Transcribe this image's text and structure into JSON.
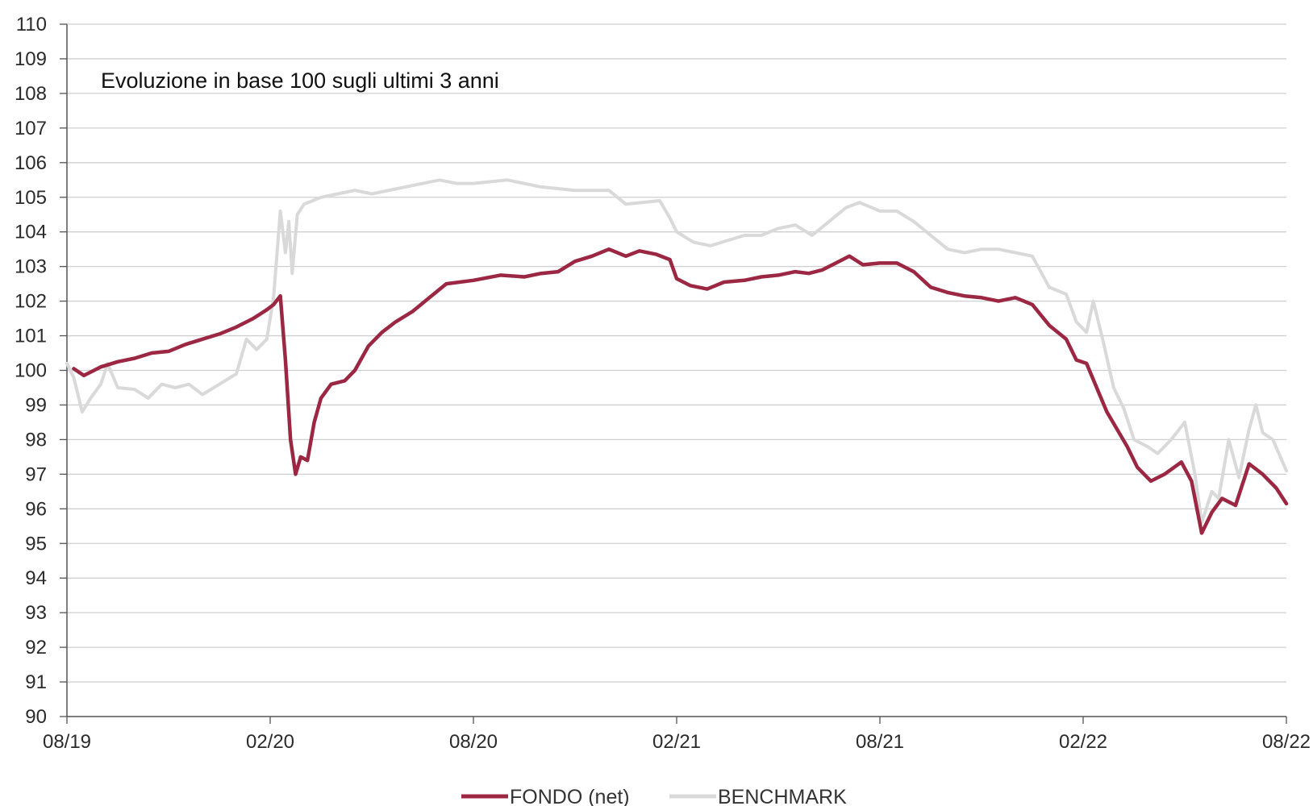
{
  "chart_data": {
    "type": "line",
    "title": "Evoluzione in base 100 sugli ultimi 3 anni",
    "xlabel": "",
    "ylabel": "",
    "ylim": [
      90,
      110
    ],
    "yticks": [
      90,
      91,
      92,
      93,
      94,
      95,
      96,
      97,
      98,
      99,
      100,
      101,
      102,
      103,
      104,
      105,
      106,
      107,
      108,
      109,
      110
    ],
    "xlim": [
      0,
      36
    ],
    "xticks": [
      {
        "x": 0,
        "label": "08/19"
      },
      {
        "x": 6,
        "label": "02/20"
      },
      {
        "x": 12,
        "label": "08/20"
      },
      {
        "x": 18,
        "label": "02/21"
      },
      {
        "x": 24,
        "label": "08/21"
      },
      {
        "x": 30,
        "label": "02/22"
      },
      {
        "x": 36,
        "label": "08/22"
      }
    ],
    "grid": true,
    "legend_position": "bottom-center",
    "series": [
      {
        "name": "FONDO (net)",
        "color": "#9b2743",
        "points": [
          [
            0.2,
            100.05
          ],
          [
            0.5,
            99.85
          ],
          [
            1.0,
            100.1
          ],
          [
            1.5,
            100.25
          ],
          [
            2.0,
            100.35
          ],
          [
            2.5,
            100.5
          ],
          [
            3.0,
            100.55
          ],
          [
            3.5,
            100.75
          ],
          [
            4.0,
            100.9
          ],
          [
            4.5,
            101.05
          ],
          [
            5.0,
            101.25
          ],
          [
            5.5,
            101.5
          ],
          [
            5.9,
            101.75
          ],
          [
            6.1,
            101.9
          ],
          [
            6.3,
            102.15
          ],
          [
            6.45,
            100.3
          ],
          [
            6.6,
            98.0
          ],
          [
            6.75,
            97.0
          ],
          [
            6.9,
            97.5
          ],
          [
            7.1,
            97.4
          ],
          [
            7.3,
            98.5
          ],
          [
            7.5,
            99.2
          ],
          [
            7.8,
            99.6
          ],
          [
            8.2,
            99.7
          ],
          [
            8.5,
            100.0
          ],
          [
            8.9,
            100.7
          ],
          [
            9.3,
            101.1
          ],
          [
            9.7,
            101.4
          ],
          [
            10.2,
            101.7
          ],
          [
            10.7,
            102.1
          ],
          [
            11.2,
            102.5
          ],
          [
            12.0,
            102.6
          ],
          [
            12.8,
            102.75
          ],
          [
            13.5,
            102.7
          ],
          [
            14.0,
            102.8
          ],
          [
            14.5,
            102.85
          ],
          [
            15.0,
            103.15
          ],
          [
            15.5,
            103.3
          ],
          [
            16.0,
            103.5
          ],
          [
            16.5,
            103.3
          ],
          [
            16.9,
            103.45
          ],
          [
            17.4,
            103.35
          ],
          [
            17.8,
            103.2
          ],
          [
            18.0,
            102.65
          ],
          [
            18.4,
            102.45
          ],
          [
            18.9,
            102.35
          ],
          [
            19.4,
            102.55
          ],
          [
            20.0,
            102.6
          ],
          [
            20.5,
            102.7
          ],
          [
            21.0,
            102.75
          ],
          [
            21.5,
            102.85
          ],
          [
            21.9,
            102.8
          ],
          [
            22.3,
            102.9
          ],
          [
            22.7,
            103.1
          ],
          [
            23.1,
            103.3
          ],
          [
            23.5,
            103.05
          ],
          [
            24.0,
            103.1
          ],
          [
            24.5,
            103.1
          ],
          [
            25.0,
            102.85
          ],
          [
            25.5,
            102.4
          ],
          [
            26.0,
            102.25
          ],
          [
            26.5,
            102.15
          ],
          [
            27.0,
            102.1
          ],
          [
            27.5,
            102.0
          ],
          [
            28.0,
            102.1
          ],
          [
            28.5,
            101.9
          ],
          [
            29.0,
            101.3
          ],
          [
            29.5,
            100.9
          ],
          [
            29.8,
            100.3
          ],
          [
            30.1,
            100.2
          ],
          [
            30.4,
            99.5
          ],
          [
            30.7,
            98.8
          ],
          [
            31.0,
            98.3
          ],
          [
            31.3,
            97.8
          ],
          [
            31.6,
            97.2
          ],
          [
            32.0,
            96.8
          ],
          [
            32.4,
            97.0
          ],
          [
            32.9,
            97.35
          ],
          [
            33.2,
            96.8
          ],
          [
            33.5,
            95.3
          ],
          [
            33.8,
            95.9
          ],
          [
            34.1,
            96.3
          ],
          [
            34.5,
            96.1
          ],
          [
            34.9,
            97.3
          ],
          [
            35.3,
            97.0
          ],
          [
            35.7,
            96.6
          ],
          [
            36.0,
            96.15
          ]
        ]
      },
      {
        "name": "BENCHMARK",
        "color": "#d9d9d9",
        "points": [
          [
            0.0,
            100.2
          ],
          [
            0.2,
            99.8
          ],
          [
            0.45,
            98.8
          ],
          [
            0.7,
            99.2
          ],
          [
            1.0,
            99.6
          ],
          [
            1.2,
            100.2
          ],
          [
            1.5,
            99.5
          ],
          [
            2.0,
            99.45
          ],
          [
            2.4,
            99.2
          ],
          [
            2.8,
            99.6
          ],
          [
            3.2,
            99.5
          ],
          [
            3.6,
            99.6
          ],
          [
            4.0,
            99.3
          ],
          [
            4.5,
            99.6
          ],
          [
            5.0,
            99.9
          ],
          [
            5.3,
            100.9
          ],
          [
            5.6,
            100.6
          ],
          [
            5.9,
            100.9
          ],
          [
            6.1,
            102.1
          ],
          [
            6.3,
            104.6
          ],
          [
            6.45,
            103.4
          ],
          [
            6.55,
            104.3
          ],
          [
            6.65,
            102.8
          ],
          [
            6.8,
            104.5
          ],
          [
            7.0,
            104.8
          ],
          [
            7.5,
            105.0
          ],
          [
            8.0,
            105.1
          ],
          [
            8.5,
            105.2
          ],
          [
            9.0,
            105.1
          ],
          [
            10.0,
            105.3
          ],
          [
            11.0,
            105.5
          ],
          [
            11.5,
            105.4
          ],
          [
            12.0,
            105.4
          ],
          [
            13.0,
            105.5
          ],
          [
            14.0,
            105.3
          ],
          [
            15.0,
            105.2
          ],
          [
            16.0,
            105.2
          ],
          [
            16.5,
            104.8
          ],
          [
            17.5,
            104.9
          ],
          [
            17.8,
            104.4
          ],
          [
            18.0,
            104.0
          ],
          [
            18.5,
            103.7
          ],
          [
            19.0,
            103.6
          ],
          [
            19.5,
            103.75
          ],
          [
            20.0,
            103.9
          ],
          [
            20.5,
            103.9
          ],
          [
            21.0,
            104.1
          ],
          [
            21.5,
            104.2
          ],
          [
            22.0,
            103.9
          ],
          [
            22.5,
            104.3
          ],
          [
            23.0,
            104.7
          ],
          [
            23.4,
            104.85
          ],
          [
            24.0,
            104.6
          ],
          [
            24.5,
            104.6
          ],
          [
            25.0,
            104.3
          ],
          [
            25.5,
            103.9
          ],
          [
            26.0,
            103.5
          ],
          [
            26.5,
            103.4
          ],
          [
            27.0,
            103.5
          ],
          [
            27.5,
            103.5
          ],
          [
            28.0,
            103.4
          ],
          [
            28.5,
            103.3
          ],
          [
            29.0,
            102.4
          ],
          [
            29.5,
            102.2
          ],
          [
            29.8,
            101.4
          ],
          [
            30.1,
            101.1
          ],
          [
            30.3,
            102.0
          ],
          [
            30.6,
            100.8
          ],
          [
            30.9,
            99.5
          ],
          [
            31.2,
            98.9
          ],
          [
            31.5,
            98.0
          ],
          [
            31.9,
            97.8
          ],
          [
            32.2,
            97.6
          ],
          [
            32.6,
            98.0
          ],
          [
            33.0,
            98.5
          ],
          [
            33.3,
            97.0
          ],
          [
            33.5,
            95.6
          ],
          [
            33.8,
            96.5
          ],
          [
            34.0,
            96.3
          ],
          [
            34.3,
            98.0
          ],
          [
            34.6,
            96.9
          ],
          [
            34.9,
            98.3
          ],
          [
            35.1,
            99.0
          ],
          [
            35.3,
            98.2
          ],
          [
            35.6,
            98.0
          ],
          [
            36.0,
            97.1
          ]
        ]
      }
    ]
  }
}
